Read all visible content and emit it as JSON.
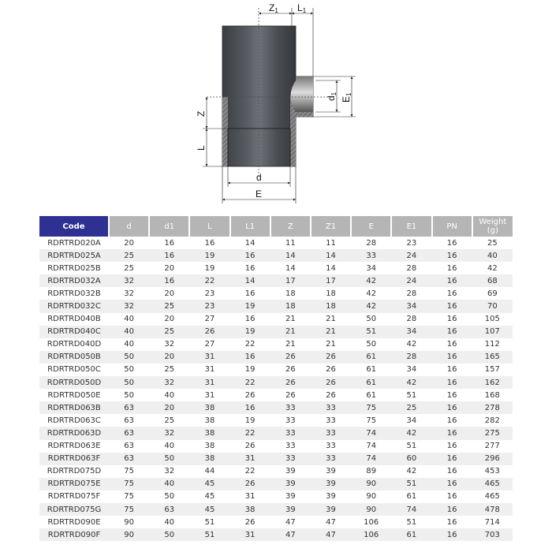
{
  "drawing": {
    "labels": {
      "Z1": "Z",
      "Z1_sub": "1",
      "L1": "L",
      "L1_sub": "1",
      "d1": "d",
      "d1_sub": "1",
      "E1": "E",
      "E1_sub": "1",
      "Z": "Z",
      "L": "L",
      "d": "d",
      "E": "E"
    }
  },
  "table": {
    "headers": [
      "Code",
      "d",
      "d1",
      "L",
      "L1",
      "Z",
      "Z1",
      "E",
      "E1",
      "PN",
      "Weight (g)"
    ],
    "colors": {
      "code_header": "#2e3192",
      "header": "#b5b5b5",
      "stripe": "#efefef"
    },
    "rows": [
      [
        "RDRTRD020A",
        "20",
        "16",
        "16",
        "14",
        "11",
        "11",
        "28",
        "23",
        "16",
        "25"
      ],
      [
        "RDRTRD025A",
        "25",
        "16",
        "19",
        "16",
        "14",
        "14",
        "33",
        "24",
        "16",
        "40"
      ],
      [
        "RDRTRD025B",
        "25",
        "20",
        "19",
        "16",
        "14",
        "14",
        "34",
        "28",
        "16",
        "42"
      ],
      [
        "RDRTRD032A",
        "32",
        "16",
        "22",
        "14",
        "17",
        "17",
        "42",
        "24",
        "16",
        "68"
      ],
      [
        "RDRTRD032B",
        "32",
        "20",
        "23",
        "16",
        "18",
        "18",
        "42",
        "28",
        "16",
        "69"
      ],
      [
        "RDRTRD032C",
        "32",
        "25",
        "23",
        "19",
        "18",
        "18",
        "42",
        "34",
        "16",
        "70"
      ],
      [
        "RDRTRD040B",
        "40",
        "20",
        "27",
        "16",
        "21",
        "21",
        "50",
        "28",
        "16",
        "105"
      ],
      [
        "RDRTRD040C",
        "40",
        "25",
        "26",
        "19",
        "21",
        "21",
        "51",
        "34",
        "16",
        "107"
      ],
      [
        "RDRTRD040D",
        "40",
        "32",
        "27",
        "22",
        "21",
        "21",
        "50",
        "42",
        "16",
        "112"
      ],
      [
        "RDRTRD050B",
        "50",
        "20",
        "31",
        "16",
        "26",
        "26",
        "61",
        "28",
        "16",
        "165"
      ],
      [
        "RDRTRD050C",
        "50",
        "25",
        "31",
        "19",
        "26",
        "26",
        "61",
        "34",
        "16",
        "157"
      ],
      [
        "RDRTRD050D",
        "50",
        "32",
        "31",
        "22",
        "26",
        "26",
        "61",
        "42",
        "16",
        "162"
      ],
      [
        "RDRTRD050E",
        "50",
        "40",
        "31",
        "26",
        "26",
        "26",
        "61",
        "51",
        "16",
        "168"
      ],
      [
        "RDRTRD063B",
        "63",
        "20",
        "38",
        "16",
        "33",
        "33",
        "75",
        "25",
        "16",
        "278"
      ],
      [
        "RDRTRD063C",
        "63",
        "25",
        "38",
        "19",
        "33",
        "33",
        "75",
        "34",
        "16",
        "282"
      ],
      [
        "RDRTRD063D",
        "63",
        "32",
        "38",
        "22",
        "33",
        "33",
        "74",
        "42",
        "16",
        "275"
      ],
      [
        "RDRTRD063E",
        "63",
        "40",
        "38",
        "26",
        "33",
        "33",
        "74",
        "51",
        "16",
        "277"
      ],
      [
        "RDRTRD063F",
        "63",
        "50",
        "38",
        "31",
        "33",
        "33",
        "74",
        "60",
        "16",
        "296"
      ],
      [
        "RDRTRD075D",
        "75",
        "32",
        "44",
        "22",
        "39",
        "39",
        "89",
        "42",
        "16",
        "453"
      ],
      [
        "RDRTRD075E",
        "75",
        "40",
        "45",
        "26",
        "39",
        "39",
        "90",
        "51",
        "16",
        "465"
      ],
      [
        "RDRTRD075F",
        "75",
        "50",
        "45",
        "31",
        "39",
        "39",
        "90",
        "61",
        "16",
        "465"
      ],
      [
        "RDRTRD075G",
        "75",
        "63",
        "45",
        "38",
        "39",
        "39",
        "90",
        "74",
        "16",
        "478"
      ],
      [
        "RDRTRD090E",
        "90",
        "40",
        "51",
        "26",
        "47",
        "47",
        "106",
        "51",
        "16",
        "714"
      ],
      [
        "RDRTRD090F",
        "90",
        "50",
        "51",
        "31",
        "47",
        "47",
        "106",
        "61",
        "16",
        "703"
      ]
    ]
  }
}
